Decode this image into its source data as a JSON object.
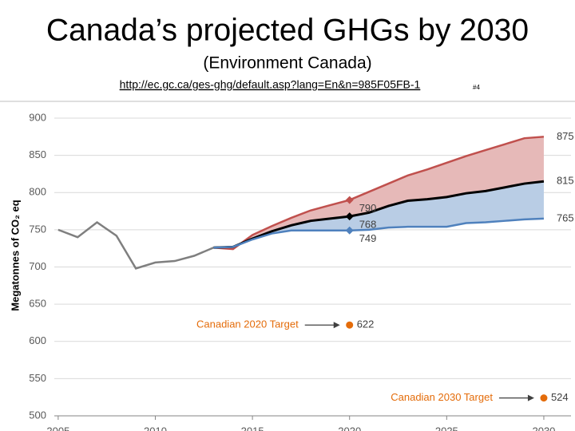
{
  "header": {
    "title": "Canada’s projected GHGs by 2030",
    "subtitle": "(Environment Canada)",
    "url": "http://ec.gc.ca/ges-ghg/default.asp?lang=En&n=985F05FB-1",
    "slide_number": "#4"
  },
  "chart_data": {
    "type": "line",
    "ylabel": "Megatonnes of CO₂ eq",
    "x": [
      2005,
      2006,
      2007,
      2008,
      2009,
      2010,
      2011,
      2012,
      2013,
      2014,
      2015,
      2016,
      2017,
      2018,
      2019,
      2020,
      2021,
      2022,
      2023,
      2024,
      2025,
      2026,
      2027,
      2028,
      2029,
      2030
    ],
    "series": [
      {
        "color": "#7f7f7f",
        "values": [
          750,
          740,
          760,
          742,
          698,
          706,
          708,
          715,
          726,
          727,
          null,
          null,
          null,
          null,
          null,
          null,
          null,
          null,
          null,
          null,
          null,
          null,
          null,
          null,
          null,
          null
        ]
      },
      {
        "color": "#c0504d",
        "fill": "#e6b9b8",
        "values": [
          null,
          null,
          null,
          null,
          null,
          null,
          null,
          null,
          726,
          724,
          743,
          755,
          766,
          776,
          783,
          790,
          801,
          812,
          823,
          831,
          840,
          849,
          857,
          865,
          873,
          875
        ]
      },
      {
        "color": "#000000",
        "values": [
          null,
          null,
          null,
          null,
          null,
          null,
          null,
          null,
          726,
          727,
          738,
          748,
          756,
          762,
          765,
          768,
          773,
          782,
          789,
          791,
          794,
          799,
          802,
          807,
          812,
          815
        ]
      },
      {
        "color": "#4f81bd",
        "fill": "#b9cde5",
        "values": [
          null,
          null,
          null,
          null,
          null,
          null,
          null,
          null,
          726,
          727,
          737,
          745,
          749,
          749,
          749,
          749,
          750,
          753,
          754,
          754,
          754,
          759,
          760,
          762,
          764,
          765
        ]
      }
    ],
    "targets": [
      {
        "label": "Canadian 2020 Target",
        "x": 2020,
        "value": 622,
        "color": "#e46c0a"
      },
      {
        "label": "Canadian 2030 Target",
        "x": 2030,
        "value": 524,
        "color": "#e46c0a"
      }
    ],
    "xlim": [
      2004.8,
      2031.4
    ],
    "xticks": [
      2005,
      2010,
      2015,
      2020,
      2025,
      2030
    ],
    "ylim": [
      500,
      900
    ],
    "yticks": [
      500,
      550,
      600,
      650,
      700,
      750,
      800,
      850,
      900
    ],
    "grid": true
  }
}
